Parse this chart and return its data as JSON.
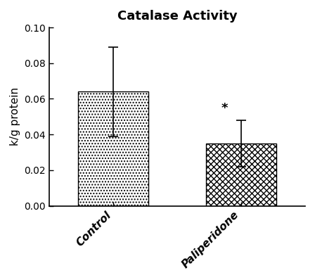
{
  "title": "Catalase Activity",
  "ylabel": "k/g protein",
  "categories": [
    "Control",
    "Paliperidone"
  ],
  "values": [
    0.064,
    0.035
  ],
  "errors": [
    0.025,
    0.013
  ],
  "ylim": [
    0.0,
    0.1
  ],
  "yticks": [
    0.0,
    0.02,
    0.04,
    0.06,
    0.08,
    0.1
  ],
  "bar_color": "#ffffff",
  "bar_edgecolor": "#000000",
  "significance_label": "*",
  "sig_bar_index": 1,
  "title_fontsize": 13,
  "label_fontsize": 11,
  "tick_fontsize": 10,
  "background_color": "#ffffff",
  "bar_width": 0.55,
  "capsize": 5,
  "x_positions": [
    0.3,
    0.7
  ]
}
